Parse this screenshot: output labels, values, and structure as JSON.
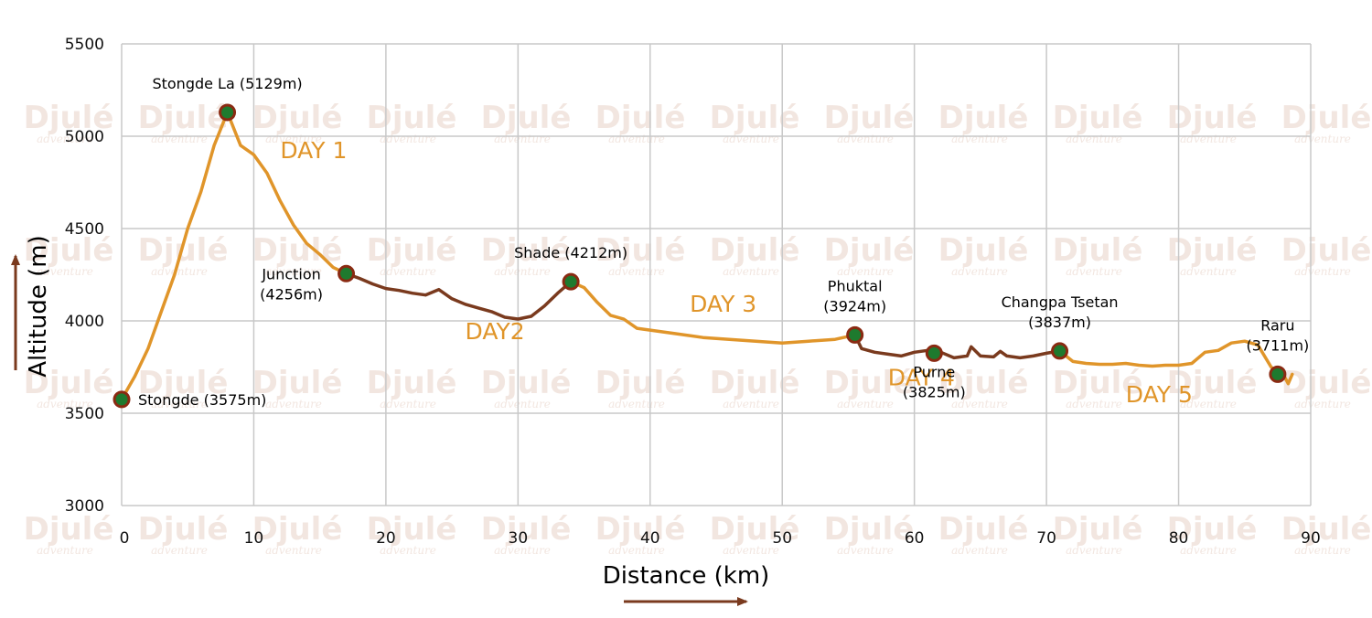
{
  "watermark": {
    "brand": "Djulé",
    "tagline": "adventure"
  },
  "chart_data": {
    "type": "line",
    "xlabel": "Distance (km)",
    "ylabel": "Altitude (m)",
    "xlim": [
      0,
      90
    ],
    "ylim": [
      3000,
      5500
    ],
    "x_ticks": [
      "0",
      "10",
      "20",
      "30",
      "40",
      "50",
      "60",
      "70",
      "80",
      "90"
    ],
    "y_ticks": [
      "3000",
      "3500",
      "4000",
      "4500",
      "5000",
      "5500"
    ],
    "grid": true,
    "colors": {
      "orange": "#E0952A",
      "brown": "#7A3A1E",
      "marker_fill": "#1E7A2E",
      "marker_stroke": "#8A2A12",
      "grid": "#c8c8c8"
    },
    "series": [
      {
        "color": "orange",
        "points": [
          [
            0,
            3575
          ],
          [
            1,
            3700
          ],
          [
            2,
            3850
          ],
          [
            3,
            4050
          ],
          [
            4,
            4250
          ],
          [
            5,
            4500
          ],
          [
            6,
            4700
          ],
          [
            7,
            4950
          ],
          [
            8,
            5129
          ],
          [
            9,
            4950
          ],
          [
            10,
            4900
          ],
          [
            11,
            4800
          ],
          [
            12,
            4650
          ],
          [
            13,
            4520
          ],
          [
            14,
            4420
          ],
          [
            15,
            4360
          ],
          [
            16,
            4290
          ],
          [
            17,
            4256
          ]
        ]
      },
      {
        "color": "brown",
        "points": [
          [
            17,
            4256
          ],
          [
            18,
            4230
          ],
          [
            19,
            4200
          ],
          [
            20,
            4175
          ],
          [
            21,
            4165
          ],
          [
            22,
            4150
          ],
          [
            23,
            4140
          ],
          [
            24,
            4170
          ],
          [
            25,
            4120
          ],
          [
            26,
            4090
          ],
          [
            27,
            4070
          ],
          [
            28,
            4050
          ],
          [
            29,
            4020
          ],
          [
            30,
            4010
          ],
          [
            31,
            4025
          ],
          [
            32,
            4080
          ],
          [
            33,
            4150
          ],
          [
            34,
            4212
          ]
        ]
      },
      {
        "color": "orange",
        "points": [
          [
            34,
            4212
          ],
          [
            35,
            4180
          ],
          [
            36,
            4100
          ],
          [
            37,
            4030
          ],
          [
            38,
            4010
          ],
          [
            39,
            3960
          ],
          [
            40,
            3950
          ],
          [
            42,
            3930
          ],
          [
            44,
            3910
          ],
          [
            46,
            3900
          ],
          [
            48,
            3890
          ],
          [
            50,
            3880
          ],
          [
            52,
            3890
          ],
          [
            54,
            3900
          ],
          [
            55.5,
            3924
          ]
        ]
      },
      {
        "color": "brown",
        "points": [
          [
            55.5,
            3924
          ],
          [
            56,
            3850
          ],
          [
            57,
            3830
          ],
          [
            58,
            3820
          ],
          [
            59,
            3810
          ],
          [
            60,
            3830
          ],
          [
            61,
            3840
          ],
          [
            61.5,
            3825
          ],
          [
            62,
            3830
          ],
          [
            63,
            3800
          ],
          [
            64,
            3810
          ],
          [
            64.3,
            3860
          ],
          [
            65,
            3810
          ],
          [
            66,
            3805
          ],
          [
            66.5,
            3835
          ],
          [
            67,
            3810
          ],
          [
            68,
            3800
          ],
          [
            69,
            3810
          ],
          [
            70,
            3825
          ],
          [
            71,
            3837
          ]
        ]
      },
      {
        "color": "orange",
        "points": [
          [
            71,
            3837
          ],
          [
            72,
            3780
          ],
          [
            73,
            3770
          ],
          [
            74,
            3765
          ],
          [
            75,
            3765
          ],
          [
            76,
            3770
          ],
          [
            77,
            3760
          ],
          [
            78,
            3755
          ],
          [
            79,
            3760
          ],
          [
            80,
            3760
          ],
          [
            81,
            3770
          ],
          [
            82,
            3830
          ],
          [
            83,
            3840
          ],
          [
            84,
            3880
          ],
          [
            85,
            3890
          ],
          [
            86,
            3870
          ],
          [
            87,
            3750
          ],
          [
            88,
            3700
          ],
          [
            88.3,
            3660
          ],
          [
            88.6,
            3711
          ]
        ]
      }
    ],
    "markers": [
      {
        "x": 0,
        "y": 3575,
        "label_lines": [
          "Stongde (3575m)"
        ],
        "label_pos": "right"
      },
      {
        "x": 8,
        "y": 5129,
        "label_lines": [
          "Stongde La (5129m)"
        ],
        "label_pos": "top"
      },
      {
        "x": 17,
        "y": 4256,
        "label_lines": [
          "Junction",
          "(4256m)"
        ],
        "label_pos": "left"
      },
      {
        "x": 34,
        "y": 4212,
        "label_lines": [
          "Shade (4212m)"
        ],
        "label_pos": "top"
      },
      {
        "x": 55.5,
        "y": 3924,
        "label_lines": [
          "Phuktal",
          "(3924m)"
        ],
        "label_pos": "top"
      },
      {
        "x": 61.5,
        "y": 3825,
        "label_lines": [
          "Purne",
          "(3825m)"
        ],
        "label_pos": "bottom"
      },
      {
        "x": 71,
        "y": 3837,
        "label_lines": [
          "Changpa Tsetan",
          "(3837m)"
        ],
        "label_pos": "top"
      },
      {
        "x": 87.5,
        "y": 3711,
        "label_lines": [
          "Raru",
          "(3711m)"
        ],
        "label_pos": "top"
      }
    ],
    "day_labels": [
      {
        "text": "DAY 1",
        "x": 12,
        "y": 4880
      },
      {
        "text": "DAY2",
        "x": 26,
        "y": 3900
      },
      {
        "text": "DAY 3",
        "x": 43,
        "y": 4050
      },
      {
        "text": "DAY 4",
        "x": 58,
        "y": 3650
      },
      {
        "text": "DAY 5",
        "x": 76,
        "y": 3560
      }
    ]
  }
}
